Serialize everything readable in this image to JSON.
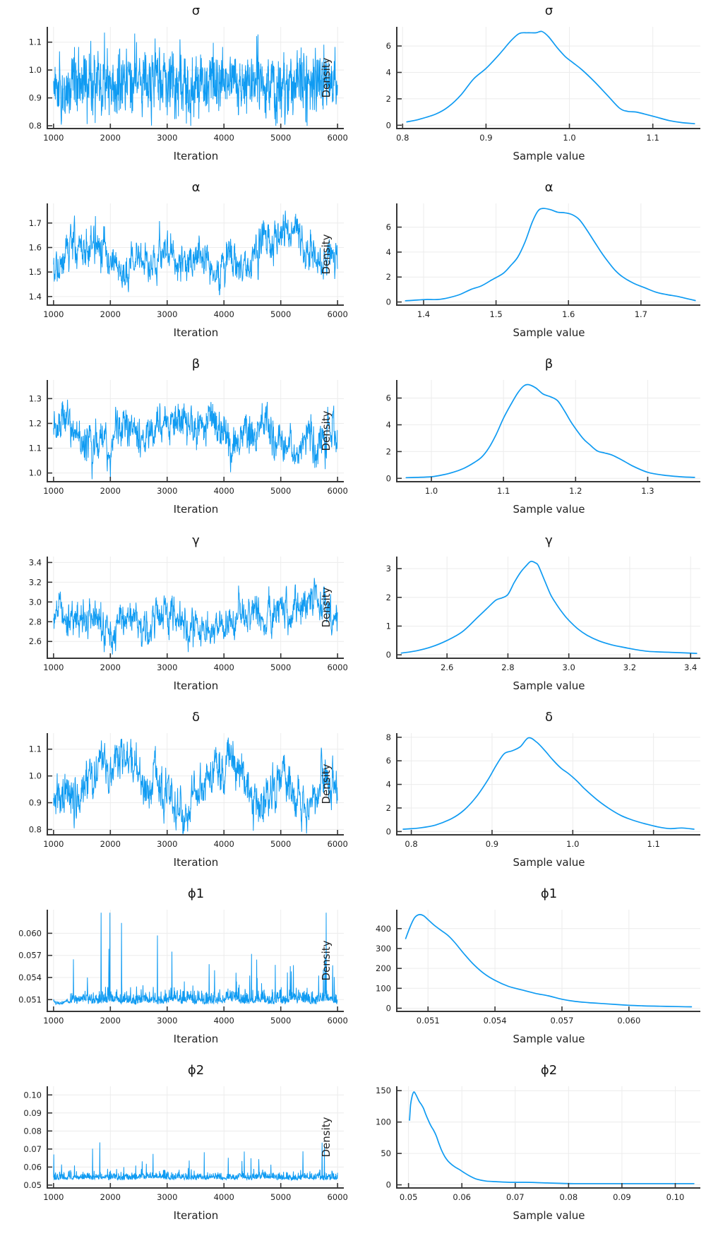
{
  "style": {
    "line_color": "#0f9bf2",
    "axis_color": "#363636",
    "grid_color": "#ececec",
    "tick_label_color": "#1f1f1f",
    "background": "#ffffff"
  },
  "chart_data": [
    {
      "type": "line",
      "kind": "trace",
      "title": "σ",
      "xlabel": "Iteration",
      "xlim": [
        890,
        6110
      ],
      "xticks": [
        1000,
        2000,
        3000,
        4000,
        5000,
        6000
      ],
      "xtick_labels": [
        "1000",
        "2000",
        "3000",
        "4000",
        "5000",
        "6000"
      ],
      "ylim": [
        0.79,
        1.155
      ],
      "yticks": [
        0.8,
        0.9,
        1.0,
        1.1
      ],
      "ytick_labels": [
        "0.8",
        "0.9",
        "1.0",
        "1.1"
      ],
      "gen": {
        "style": "ar",
        "n": 1100,
        "mean": 0.955,
        "slow_ar": 0.92,
        "slow_sd": 0.018,
        "fast_ar": 0.25,
        "fast_sd": 0.058,
        "clip": [
          0.8,
          1.145
        ],
        "seed": 11
      }
    },
    {
      "type": "line",
      "kind": "density",
      "title": "σ",
      "xlabel": "Sample value",
      "ylabel": "Density",
      "xlim": [
        0.793,
        1.157
      ],
      "xticks": [
        0.8,
        0.9,
        1.0,
        1.1
      ],
      "xtick_labels": [
        "0.8",
        "0.9",
        "1.0",
        "1.1"
      ],
      "ylim": [
        -0.25,
        7.45
      ],
      "yticks": [
        0,
        2,
        4,
        6
      ],
      "ytick_labels": [
        "0",
        "2",
        "4",
        "6"
      ],
      "x": [
        0.805,
        0.82,
        0.84,
        0.855,
        0.87,
        0.885,
        0.9,
        0.915,
        0.93,
        0.94,
        0.95,
        0.96,
        0.967,
        0.975,
        0.985,
        0.995,
        1.005,
        1.015,
        1.03,
        1.045,
        1.06,
        1.07,
        1.08,
        1.09,
        1.105,
        1.12,
        1.135,
        1.15
      ],
      "y": [
        0.25,
        0.45,
        0.85,
        1.4,
        2.3,
        3.5,
        4.3,
        5.3,
        6.4,
        6.95,
        7.0,
        7.0,
        7.1,
        6.7,
        5.9,
        5.2,
        4.7,
        4.2,
        3.3,
        2.3,
        1.3,
        1.05,
        1.0,
        0.85,
        0.6,
        0.35,
        0.2,
        0.12
      ]
    },
    {
      "type": "line",
      "kind": "trace",
      "title": "α",
      "xlabel": "Iteration",
      "xlim": [
        890,
        6110
      ],
      "xticks": [
        1000,
        2000,
        3000,
        4000,
        5000,
        6000
      ],
      "xtick_labels": [
        "1000",
        "2000",
        "3000",
        "4000",
        "5000",
        "6000"
      ],
      "ylim": [
        1.365,
        1.78
      ],
      "yticks": [
        1.4,
        1.5,
        1.6,
        1.7
      ],
      "ytick_labels": [
        "1.4",
        "1.5",
        "1.6",
        "1.7"
      ],
      "gen": {
        "style": "ar",
        "n": 1100,
        "mean": 1.575,
        "slow_ar": 0.985,
        "slow_sd": 0.045,
        "fast_ar": 0.55,
        "fast_sd": 0.038,
        "clip": [
          1.375,
          1.77
        ],
        "seed": 22
      }
    },
    {
      "type": "line",
      "kind": "density",
      "title": "α",
      "xlabel": "Sample value",
      "ylabel": "Density",
      "xlim": [
        1.363,
        1.782
      ],
      "xticks": [
        1.4,
        1.5,
        1.6,
        1.7
      ],
      "xtick_labels": [
        "1.4",
        "1.5",
        "1.6",
        "1.7"
      ],
      "ylim": [
        -0.25,
        7.9
      ],
      "yticks": [
        0,
        2,
        4,
        6
      ],
      "ytick_labels": [
        "0",
        "2",
        "4",
        "6"
      ],
      "x": [
        1.375,
        1.39,
        1.405,
        1.42,
        1.435,
        1.45,
        1.465,
        1.48,
        1.495,
        1.51,
        1.52,
        1.53,
        1.54,
        1.55,
        1.558,
        1.565,
        1.575,
        1.585,
        1.595,
        1.605,
        1.615,
        1.625,
        1.635,
        1.645,
        1.655,
        1.665,
        1.675,
        1.69,
        1.705,
        1.72,
        1.735,
        1.75,
        1.765,
        1.775
      ],
      "y": [
        0.1,
        0.15,
        0.2,
        0.2,
        0.35,
        0.6,
        1.0,
        1.3,
        1.8,
        2.3,
        2.9,
        3.6,
        4.8,
        6.4,
        7.3,
        7.5,
        7.4,
        7.2,
        7.15,
        7.0,
        6.6,
        5.8,
        4.9,
        4.0,
        3.2,
        2.5,
        2.0,
        1.5,
        1.15,
        0.8,
        0.6,
        0.45,
        0.25,
        0.12
      ]
    },
    {
      "type": "line",
      "kind": "trace",
      "title": "β",
      "xlabel": "Iteration",
      "xlim": [
        890,
        6110
      ],
      "xticks": [
        1000,
        2000,
        3000,
        4000,
        5000,
        6000
      ],
      "xtick_labels": [
        "1000",
        "2000",
        "3000",
        "4000",
        "5000",
        "6000"
      ],
      "ylim": [
        0.965,
        1.375
      ],
      "yticks": [
        1.0,
        1.1,
        1.2,
        1.3
      ],
      "ytick_labels": [
        "1.0",
        "1.1",
        "1.2",
        "1.3"
      ],
      "gen": {
        "style": "ar",
        "n": 1100,
        "mean": 1.145,
        "slow_ar": 0.98,
        "slow_sd": 0.045,
        "fast_ar": 0.5,
        "fast_sd": 0.038,
        "clip": [
          0.975,
          1.37
        ],
        "seed": 33
      }
    },
    {
      "type": "line",
      "kind": "density",
      "title": "β",
      "xlabel": "Sample value",
      "ylabel": "Density",
      "xlim": [
        0.952,
        1.373
      ],
      "xticks": [
        1.0,
        1.1,
        1.2,
        1.3
      ],
      "xtick_labels": [
        "1.0",
        "1.1",
        "1.2",
        "1.3"
      ],
      "ylim": [
        -0.25,
        7.35
      ],
      "yticks": [
        0,
        2,
        4,
        6
      ],
      "ytick_labels": [
        "0",
        "2",
        "4",
        "6"
      ],
      "x": [
        0.965,
        0.98,
        1.0,
        1.015,
        1.03,
        1.045,
        1.06,
        1.07,
        1.08,
        1.09,
        1.1,
        1.11,
        1.12,
        1.128,
        1.135,
        1.145,
        1.155,
        1.165,
        1.175,
        1.185,
        1.195,
        1.21,
        1.22,
        1.23,
        1.24,
        1.25,
        1.265,
        1.28,
        1.3,
        1.32,
        1.345,
        1.365
      ],
      "y": [
        0.05,
        0.07,
        0.12,
        0.25,
        0.45,
        0.75,
        1.2,
        1.6,
        2.3,
        3.3,
        4.5,
        5.5,
        6.4,
        6.9,
        7.0,
        6.75,
        6.3,
        6.1,
        5.8,
        5.0,
        4.1,
        3.0,
        2.5,
        2.05,
        1.9,
        1.75,
        1.35,
        0.9,
        0.45,
        0.25,
        0.12,
        0.07
      ]
    },
    {
      "type": "line",
      "kind": "trace",
      "title": "γ",
      "xlabel": "Iteration",
      "xlim": [
        890,
        6110
      ],
      "xticks": [
        1000,
        2000,
        3000,
        4000,
        5000,
        6000
      ],
      "xtick_labels": [
        "1000",
        "2000",
        "3000",
        "4000",
        "5000",
        "6000"
      ],
      "ylim": [
        2.43,
        3.46
      ],
      "yticks": [
        2.6,
        2.8,
        3.0,
        3.2,
        3.4
      ],
      "ytick_labels": [
        "2.6",
        "2.8",
        "3.0",
        "3.2",
        "3.4"
      ],
      "gen": {
        "style": "ar",
        "n": 1100,
        "mean": 2.86,
        "slow_ar": 0.985,
        "slow_sd": 0.11,
        "fast_ar": 0.55,
        "fast_sd": 0.09,
        "clip": [
          2.45,
          3.42
        ],
        "seed": 44
      }
    },
    {
      "type": "line",
      "kind": "density",
      "title": "γ",
      "xlabel": "Sample value",
      "ylabel": "Density",
      "xlim": [
        2.435,
        3.432
      ],
      "xticks": [
        2.6,
        2.8,
        3.0,
        3.2,
        3.4
      ],
      "xtick_labels": [
        "2.6",
        "2.8",
        "3.0",
        "3.2",
        "3.4"
      ],
      "ylim": [
        -0.12,
        3.42
      ],
      "yticks": [
        0,
        1,
        2,
        3
      ],
      "ytick_labels": [
        "0",
        "1",
        "2",
        "3"
      ],
      "x": [
        2.45,
        2.5,
        2.55,
        2.6,
        2.65,
        2.7,
        2.73,
        2.76,
        2.78,
        2.8,
        2.82,
        2.84,
        2.86,
        2.875,
        2.89,
        2.9,
        2.92,
        2.94,
        2.96,
        2.98,
        3.0,
        3.03,
        3.06,
        3.1,
        3.14,
        3.18,
        3.22,
        3.26,
        3.3,
        3.35,
        3.42
      ],
      "y": [
        0.06,
        0.14,
        0.28,
        0.5,
        0.8,
        1.3,
        1.6,
        1.9,
        1.98,
        2.1,
        2.5,
        2.85,
        3.1,
        3.25,
        3.2,
        3.1,
        2.6,
        2.1,
        1.75,
        1.45,
        1.2,
        0.9,
        0.68,
        0.48,
        0.35,
        0.26,
        0.18,
        0.12,
        0.1,
        0.08,
        0.05
      ]
    },
    {
      "type": "line",
      "kind": "trace",
      "title": "δ",
      "xlabel": "Iteration",
      "xlim": [
        890,
        6110
      ],
      "xticks": [
        1000,
        2000,
        3000,
        4000,
        5000,
        6000
      ],
      "xtick_labels": [
        "1000",
        "2000",
        "3000",
        "4000",
        "5000",
        "6000"
      ],
      "ylim": [
        0.78,
        1.16
      ],
      "yticks": [
        0.8,
        0.9,
        1.0,
        1.1
      ],
      "ytick_labels": [
        "0.8",
        "0.9",
        "1.0",
        "1.1"
      ],
      "gen": {
        "style": "ar",
        "n": 1100,
        "mean": 0.945,
        "slow_ar": 0.985,
        "slow_sd": 0.05,
        "fast_ar": 0.55,
        "fast_sd": 0.04,
        "clip": [
          0.785,
          1.15
        ],
        "seed": 55
      }
    },
    {
      "type": "line",
      "kind": "density",
      "title": "δ",
      "xlabel": "Sample value",
      "ylabel": "Density",
      "xlim": [
        0.782,
        1.158
      ],
      "xticks": [
        0.8,
        0.9,
        1.0,
        1.1
      ],
      "xtick_labels": [
        "0.8",
        "0.9",
        "1.0",
        "1.1"
      ],
      "ylim": [
        -0.28,
        8.35
      ],
      "yticks": [
        0,
        2,
        4,
        6,
        8
      ],
      "ytick_labels": [
        "0",
        "2",
        "4",
        "6",
        "8"
      ],
      "x": [
        0.79,
        0.81,
        0.83,
        0.85,
        0.865,
        0.88,
        0.895,
        0.905,
        0.915,
        0.925,
        0.935,
        0.945,
        0.955,
        0.965,
        0.975,
        0.985,
        0.995,
        1.005,
        1.015,
        1.03,
        1.045,
        1.06,
        1.075,
        1.09,
        1.105,
        1.12,
        1.135,
        1.15
      ],
      "y": [
        0.2,
        0.3,
        0.55,
        1.1,
        1.8,
        2.9,
        4.4,
        5.6,
        6.6,
        6.85,
        7.2,
        7.95,
        7.6,
        6.9,
        6.1,
        5.4,
        4.9,
        4.3,
        3.6,
        2.7,
        1.95,
        1.35,
        0.95,
        0.65,
        0.4,
        0.25,
        0.3,
        0.2
      ]
    },
    {
      "type": "line",
      "kind": "trace",
      "title": "ϕ1",
      "xlabel": "Iteration",
      "xlim": [
        890,
        6110
      ],
      "xticks": [
        1000,
        2000,
        3000,
        4000,
        5000,
        6000
      ],
      "xtick_labels": [
        "1000",
        "2000",
        "3000",
        "4000",
        "5000",
        "6000"
      ],
      "ylim": [
        0.0494,
        0.0632
      ],
      "yticks": [
        0.051,
        0.054,
        0.057,
        0.06
      ],
      "ytick_labels": [
        "0.051",
        "0.054",
        "0.057",
        "0.060"
      ],
      "gen": {
        "style": "spiky",
        "n": 1100,
        "base": 0.0506,
        "noise": 0.0009,
        "spike_prob": 0.05,
        "spike_scale": 0.0032,
        "flat_frac": 0.06,
        "clip": [
          0.0499,
          0.0628
        ],
        "seed": 66
      }
    },
    {
      "type": "line",
      "kind": "density",
      "title": "ϕ1",
      "xlabel": "Sample value",
      "ylabel": "Density",
      "xlim": [
        0.0496,
        0.0632
      ],
      "xticks": [
        0.051,
        0.054,
        0.057,
        0.06
      ],
      "xtick_labels": [
        "0.051",
        "0.054",
        "0.057",
        "0.060"
      ],
      "ylim": [
        -16,
        495
      ],
      "yticks": [
        0,
        100,
        200,
        300,
        400
      ],
      "ytick_labels": [
        "0",
        "100",
        "200",
        "300",
        "400"
      ],
      "x": [
        0.05,
        0.0502,
        0.0504,
        0.0506,
        0.0508,
        0.051,
        0.0513,
        0.0516,
        0.0519,
        0.0522,
        0.0526,
        0.053,
        0.0535,
        0.054,
        0.0546,
        0.0552,
        0.0558,
        0.0564,
        0.057,
        0.0576,
        0.0582,
        0.059,
        0.0598,
        0.0606,
        0.0614,
        0.0622,
        0.0628
      ],
      "y": [
        350,
        410,
        455,
        470,
        465,
        445,
        415,
        390,
        365,
        330,
        275,
        225,
        175,
        140,
        110,
        92,
        75,
        62,
        45,
        34,
        28,
        22,
        16,
        12,
        10,
        8,
        7
      ]
    },
    {
      "type": "line",
      "kind": "trace",
      "title": "ϕ2",
      "xlabel": "Iteration",
      "xlim": [
        890,
        6110
      ],
      "xticks": [
        1000,
        2000,
        3000,
        4000,
        5000,
        6000
      ],
      "xtick_labels": [
        "1000",
        "2000",
        "3000",
        "4000",
        "5000",
        "6000"
      ],
      "ylim": [
        0.0484,
        0.1048
      ],
      "yticks": [
        0.05,
        0.06,
        0.07,
        0.08,
        0.09,
        0.1
      ],
      "ytick_labels": [
        "0.05",
        "0.06",
        "0.07",
        "0.08",
        "0.09",
        "0.10"
      ],
      "gen": {
        "style": "spiky",
        "n": 1100,
        "base": 0.0532,
        "noise": 0.0022,
        "spike_prob": 0.04,
        "spike_scale": 0.007,
        "flat_frac": 0.0,
        "clip": [
          0.0498,
          0.1035
        ],
        "seed": 77
      }
    },
    {
      "type": "line",
      "kind": "density",
      "title": "ϕ2",
      "xlabel": "Sample value",
      "ylabel": "Density",
      "xlim": [
        0.0478,
        0.1047
      ],
      "xticks": [
        0.05,
        0.06,
        0.07,
        0.08,
        0.09,
        0.1
      ],
      "xtick_labels": [
        "0.05",
        "0.06",
        "0.07",
        "0.08",
        "0.09",
        "0.10"
      ],
      "ylim": [
        -5,
        157
      ],
      "yticks": [
        0,
        50,
        100,
        150
      ],
      "ytick_labels": [
        "0",
        "50",
        "100",
        "150"
      ],
      "x": [
        0.0502,
        0.0504,
        0.0507,
        0.051,
        0.0513,
        0.0516,
        0.052,
        0.0524,
        0.0528,
        0.0532,
        0.0537,
        0.0542,
        0.0547,
        0.0552,
        0.0557,
        0.0562,
        0.0568,
        0.0574,
        0.058,
        0.0588,
        0.0596,
        0.0605,
        0.0615,
        0.0628,
        0.0645,
        0.0665,
        0.069,
        0.072,
        0.076,
        0.081,
        0.087,
        0.093,
        0.099,
        0.1035
      ],
      "y": [
        103,
        128,
        142,
        148,
        145,
        140,
        133,
        128,
        122,
        113,
        103,
        94,
        87,
        78,
        66,
        55,
        45,
        38,
        33,
        28,
        24,
        19,
        14,
        9,
        6,
        5,
        4,
        4,
        3,
        2,
        2,
        2,
        2,
        2
      ]
    }
  ]
}
